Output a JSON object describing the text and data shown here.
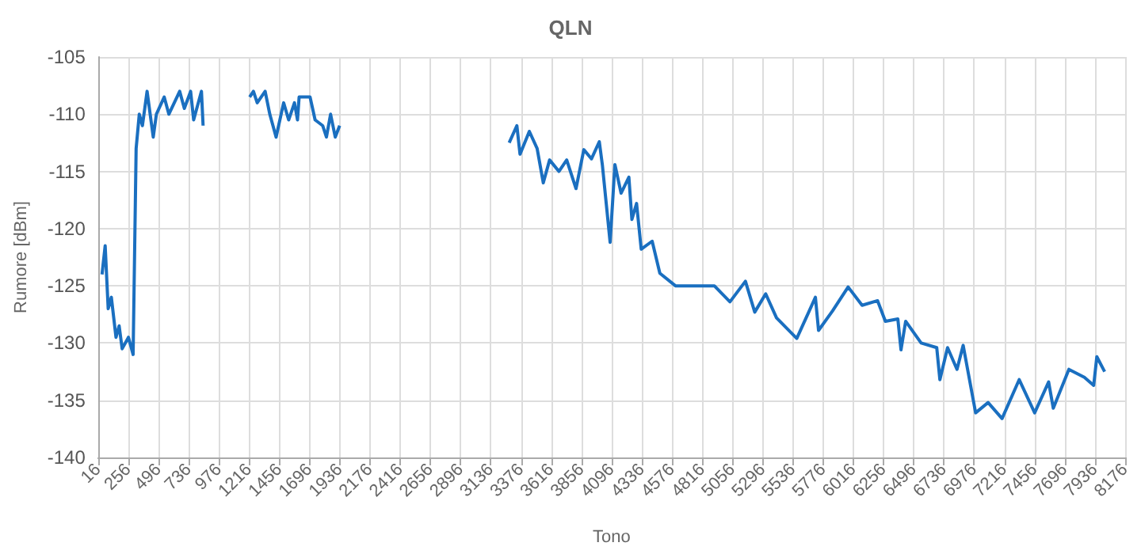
{
  "chart_data": {
    "type": "line",
    "title": "QLN",
    "xlabel": "Tono",
    "ylabel": "Rumore [dBm]",
    "xlim": [
      16,
      8176
    ],
    "xticks": [
      16,
      256,
      496,
      736,
      976,
      1216,
      1456,
      1696,
      1936,
      2176,
      2416,
      2656,
      2896,
      3136,
      3376,
      3616,
      3856,
      4096,
      4336,
      4576,
      4816,
      5056,
      5296,
      5536,
      5776,
      6016,
      6256,
      6496,
      6736,
      6976,
      7216,
      7456,
      7696,
      7936,
      8176
    ],
    "ylim": [
      -140,
      -105
    ],
    "yticks": [
      -140,
      -135,
      -130,
      -125,
      -120,
      -115,
      -110,
      -105
    ],
    "grid": true,
    "marker": "none",
    "line_style": "solid",
    "series": [
      {
        "color": "#1a6fc0",
        "x": [
          47,
          72,
          96,
          121,
          158,
          183,
          207,
          257,
          294,
          318,
          343,
          368,
          405,
          454,
          479,
          541,
          578,
          664,
          701,
          751,
          775,
          837,
          850,
          1050,
          1220,
          1250,
          1280,
          1343,
          1380,
          1430,
          1490,
          1530,
          1576,
          1600,
          1613,
          1700,
          1740,
          1800,
          1830,
          1863,
          1900,
          1935,
          2600,
          3282,
          3343,
          3368,
          3442,
          3504,
          3553,
          3603,
          3677,
          3739,
          3813,
          3875,
          3936,
          3998,
          4023,
          4084,
          4122,
          4171,
          4233,
          4257,
          4294,
          4331,
          4418,
          4479,
          4603,
          4912,
          5036,
          5159,
          5233,
          5320,
          5406,
          5567,
          5715,
          5740,
          5851,
          5975,
          6086,
          6209,
          6271,
          6370,
          6395,
          6432,
          6555,
          6679,
          6704,
          6765,
          6840,
          6889,
          6988,
          7087,
          7198,
          7334,
          7457,
          7568,
          7605,
          7729,
          7852,
          7926,
          7951,
          8013
        ],
        "values": [
          -124,
          -121.5,
          -127,
          -126,
          -129.5,
          -128.5,
          -130.5,
          -129.5,
          -131,
          -113,
          -110,
          -111,
          -108,
          -112,
          -110,
          -108.5,
          -110,
          -108,
          -109.5,
          -108,
          -110.5,
          -108,
          -111,
          null,
          -108.5,
          -108,
          -109,
          -108,
          -110,
          -112,
          -109,
          -110.5,
          -109,
          -110.5,
          -108.5,
          -108.5,
          -110.5,
          -111,
          -112,
          -110,
          -112,
          -111,
          null,
          -112.5,
          -111,
          -113.5,
          -111.5,
          -113,
          -116,
          -114,
          -115,
          -114,
          -116.5,
          -113.1,
          -113.9,
          -112.4,
          -114.5,
          -121.2,
          -114.4,
          -116.9,
          -115.5,
          -119.2,
          -117.8,
          -121.8,
          -121.1,
          -123.9,
          -125,
          -125,
          -126.4,
          -124.6,
          -127.3,
          -125.7,
          -127.8,
          -129.6,
          -126,
          -128.9,
          -127.2,
          -125.1,
          -126.7,
          -126.3,
          -128.1,
          -127.9,
          -130.6,
          -128.1,
          -130,
          -130.4,
          -133.2,
          -130.4,
          -132.3,
          -130.2,
          -136.1,
          -135.2,
          -136.6,
          -133.2,
          -136.1,
          -133.4,
          -135.7,
          -132.3,
          -133,
          -133.7,
          -131.2,
          -132.5
        ]
      }
    ]
  }
}
